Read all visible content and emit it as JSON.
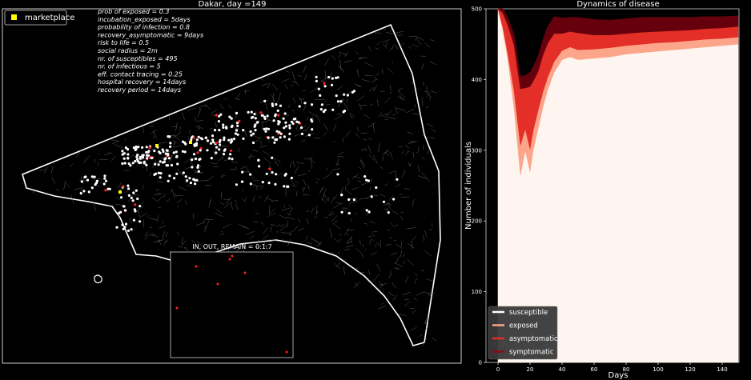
{
  "map_panel": {
    "title": "Dakar, day =149",
    "legend_label": "marketplace",
    "marketplace_color": "#ffff00",
    "params": [
      "prob of exposed = 0.3",
      "incubation_exposed = 5days",
      "probability of infection = 0.8",
      "recovery_asymptomatic = 9days",
      "risk to life = 0.5",
      "social radius = 2m",
      "nr. of susceptibles  = 495",
      "nr. of infectious = 5",
      "eff. contact tracing = 0.25",
      "hospital recovery = 14days",
      "recovery period = 14days"
    ],
    "inset_title": "IN, OUT, REMAIN = 0:1:7",
    "colors": {
      "boundary": "#ffffff",
      "individual": "#ffffff",
      "infected": "#ff2020"
    }
  },
  "chart_data": {
    "type": "area",
    "title": "Dynamics of disease",
    "xlabel": "Days",
    "ylabel": "Number of individuals",
    "xlim": [
      0,
      150
    ],
    "ylim": [
      0,
      500
    ],
    "xticks": [
      0,
      20,
      40,
      60,
      80,
      100,
      120,
      140
    ],
    "yticks": [
      0,
      100,
      200,
      300,
      400,
      500
    ],
    "stacked": true,
    "legend_position": "lower-left",
    "x": [
      0,
      3,
      6,
      10,
      14,
      17,
      20,
      22,
      25,
      28,
      31,
      35,
      40,
      45,
      50,
      60,
      70,
      80,
      90,
      100,
      110,
      120,
      130,
      140,
      150
    ],
    "series": [
      {
        "name": "susceptible",
        "color": "#fff5f0",
        "legend_color": "#ffffff",
        "values": [
          500,
          470,
          430,
          360,
          265,
          300,
          270,
          300,
          330,
          360,
          385,
          410,
          428,
          432,
          428,
          430,
          432,
          436,
          438,
          440,
          442,
          444,
          446,
          448,
          450
        ]
      },
      {
        "name": "exposed",
        "color": "#fca58a",
        "legend_color": "#fca58a",
        "values": [
          0,
          4,
          8,
          24,
          42,
          30,
          32,
          28,
          26,
          22,
          18,
          15,
          13,
          14,
          14,
          13,
          13,
          12,
          12,
          12,
          11,
          11,
          11,
          10,
          10
        ]
      },
      {
        "name": "asymptomatic",
        "color": "#e32f27",
        "legend_color": "#e32f27",
        "values": [
          0,
          20,
          40,
          65,
          80,
          58,
          88,
          70,
          55,
          52,
          48,
          40,
          24,
          22,
          24,
          20,
          18,
          17,
          17,
          16,
          16,
          15,
          15,
          15,
          15
        ]
      },
      {
        "name": "symptomatic",
        "color": "#67000d",
        "legend_color": "#8b0a14",
        "values": [
          0,
          6,
          10,
          15,
          17,
          18,
          20,
          20,
          22,
          22,
          24,
          24,
          22,
          20,
          22,
          22,
          21,
          21,
          21,
          20,
          19,
          18,
          17,
          16,
          15
        ]
      }
    ]
  }
}
